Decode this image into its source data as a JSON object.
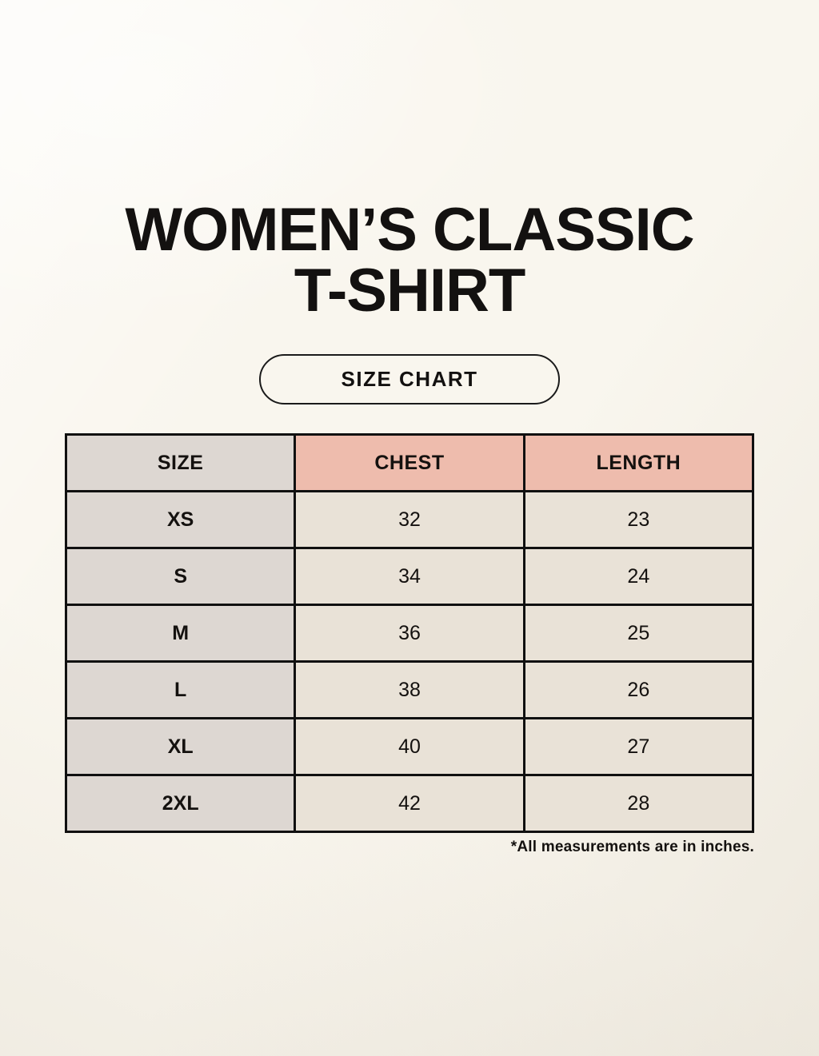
{
  "header": {
    "title_line1": "WOMEN’S CLASSIC",
    "title_line2": "T-SHIRT",
    "badge_label": "SIZE CHART"
  },
  "size_chart": {
    "columns": [
      "SIZE",
      "CHEST",
      "LENGTH"
    ],
    "rows": [
      {
        "size": "XS",
        "chest": "32",
        "length": "23"
      },
      {
        "size": "S",
        "chest": "34",
        "length": "24"
      },
      {
        "size": "M",
        "chest": "36",
        "length": "25"
      },
      {
        "size": "L",
        "chest": "38",
        "length": "26"
      },
      {
        "size": "XL",
        "chest": "40",
        "length": "27"
      },
      {
        "size": "2XL",
        "chest": "42",
        "length": "28"
      }
    ],
    "footnote": "*All measurements are in inches."
  },
  "colors": {
    "page-bg": "#f9f6ee",
    "cell-gray": "#ddd7d2",
    "cell-salmon": "#eebcad",
    "cell-cream": "#e9e2d7",
    "table-border": "#101010",
    "text": "#161412"
  }
}
